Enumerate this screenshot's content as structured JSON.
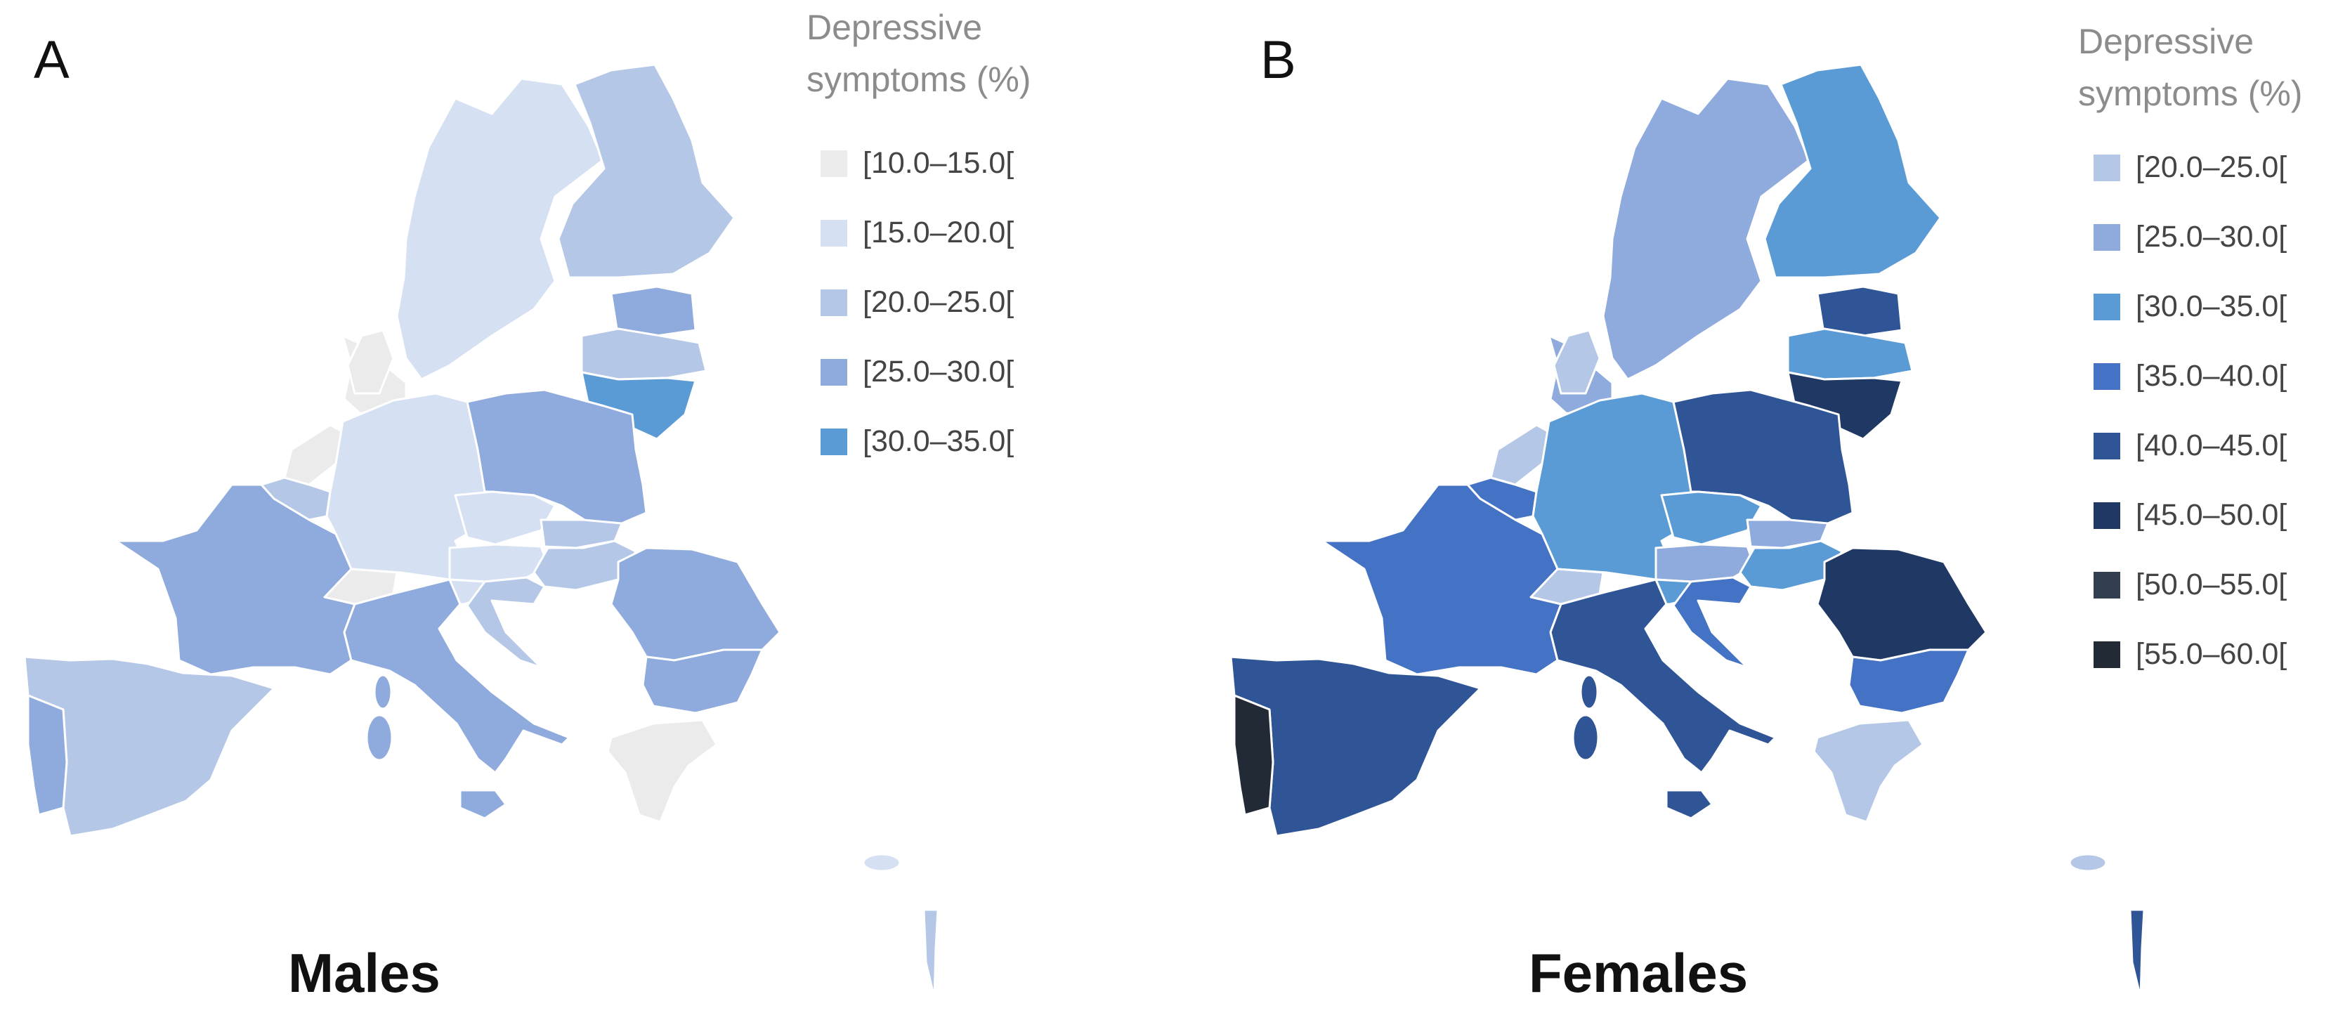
{
  "figure": {
    "panels": [
      {
        "letter": "A",
        "caption": "Males",
        "legend": {
          "title_line1": "Depressive",
          "title_line2": "symptoms (%)",
          "items": [
            {
              "label": "[10.0–15.0[",
              "color": "#ebebeb"
            },
            {
              "label": "[15.0–20.0[",
              "color": "#d6e0f3"
            },
            {
              "label": "[20.0–25.0[",
              "color": "#b4c7e7"
            },
            {
              "label": "[25.0–30.0[",
              "color": "#8faadc"
            },
            {
              "label": "[30.0–35.0[",
              "color": "#5b9bd5"
            }
          ]
        },
        "regions": {
          "norway": "#ebebeb",
          "sweden": "#d6e0f3",
          "finland": "#b4c7e7",
          "estonia": "#8faadc",
          "latvia": "#b4c7e7",
          "lithuania": "#5b9bd5",
          "denmark": "#ebebeb",
          "netherlands": "#ebebeb",
          "belgium": "#b4c7e7",
          "germany": "#d6e0f3",
          "poland": "#8faadc",
          "czechia": "#d6e0f3",
          "slovakia": "#b4c7e7",
          "austria": "#d6e0f3",
          "hungary": "#b4c7e7",
          "switzerland": "#ebebeb",
          "france": "#8faadc",
          "spain": "#b4c7e7",
          "portugal": "#8faadc",
          "italy": "#8faadc",
          "slovenia": "#d6e0f3",
          "croatia": "#b4c7e7",
          "romania": "#8faadc",
          "bulgaria": "#8faadc",
          "greece": "#ebebeb",
          "corsica": "#8faadc",
          "sardinia": "#8faadc",
          "sicily": "#8faadc",
          "cyprus": "#d6e0f3",
          "israel": "#b4c7e7"
        }
      },
      {
        "letter": "B",
        "caption": "Females",
        "legend": {
          "title_line1": "Depressive",
          "title_line2": "symptoms (%)",
          "items": [
            {
              "label": "[20.0–25.0[",
              "color": "#b4c7e7"
            },
            {
              "label": "[25.0–30.0[",
              "color": "#8faadc"
            },
            {
              "label": "[30.0–35.0[",
              "color": "#5b9bd5"
            },
            {
              "label": "[35.0–40.0[",
              "color": "#4472c4"
            },
            {
              "label": "[40.0–45.0[",
              "color": "#2f5597"
            },
            {
              "label": "[45.0–50.0[",
              "color": "#203864"
            },
            {
              "label": "[50.0–55.0[",
              "color": "#333f50"
            },
            {
              "label": "[55.0–60.0[",
              "color": "#222a35"
            }
          ]
        },
        "regions": {
          "norway": "#8faadc",
          "sweden": "#8faadc",
          "finland": "#5b9bd5",
          "estonia": "#2f5597",
          "latvia": "#5b9bd5",
          "lithuania": "#203864",
          "denmark": "#b4c7e7",
          "netherlands": "#b4c7e7",
          "belgium": "#4472c4",
          "germany": "#5b9bd5",
          "poland": "#2f5597",
          "czechia": "#5b9bd5",
          "slovakia": "#8faadc",
          "austria": "#8faadc",
          "hungary": "#5b9bd5",
          "switzerland": "#b4c7e7",
          "france": "#4472c4",
          "spain": "#2f5597",
          "portugal": "#222a35",
          "italy": "#2f5597",
          "slovenia": "#5b9bd5",
          "croatia": "#4472c4",
          "romania": "#203864",
          "bulgaria": "#4472c4",
          "greece": "#b4c7e7",
          "corsica": "#2f5597",
          "sardinia": "#2f5597",
          "sicily": "#2f5597",
          "cyprus": "#b4c7e7",
          "israel": "#2f5597"
        }
      }
    ]
  }
}
